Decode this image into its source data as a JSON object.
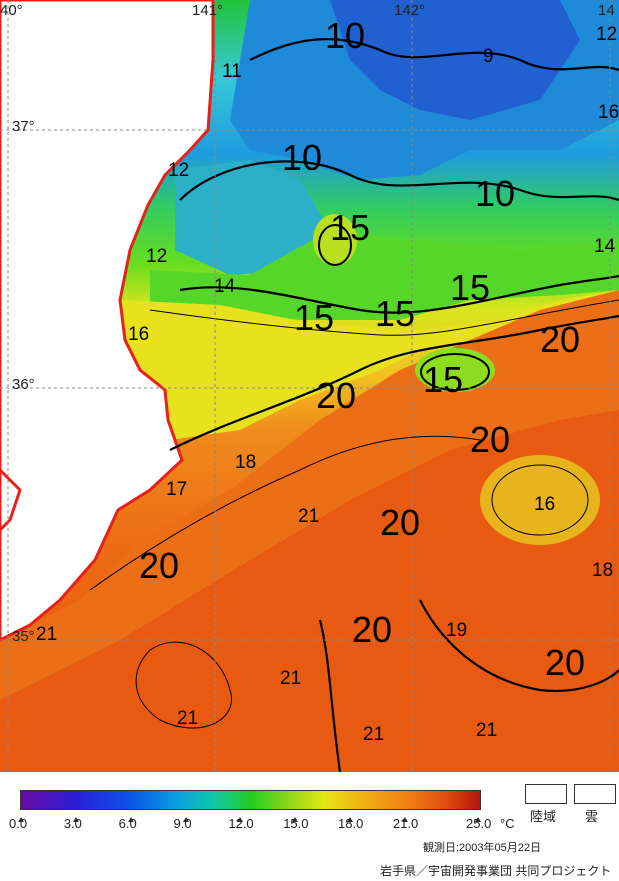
{
  "map": {
    "lon_labels": [
      "40°",
      "141°",
      "142°",
      "14"
    ],
    "lat_labels": [
      "37°",
      "36°",
      "35°"
    ],
    "contour_labels": [
      {
        "text": "10",
        "size": "large"
      },
      {
        "text": "9",
        "size": "small"
      },
      {
        "text": "11",
        "size": "small"
      },
      {
        "text": "12",
        "size": "small"
      },
      {
        "text": "16",
        "size": "small"
      },
      {
        "text": "10",
        "size": "large"
      },
      {
        "text": "10",
        "size": "large"
      },
      {
        "text": "12",
        "size": "small"
      },
      {
        "text": "15",
        "size": "large"
      },
      {
        "text": "12",
        "size": "small"
      },
      {
        "text": "14",
        "size": "small"
      },
      {
        "text": "14",
        "size": "small"
      },
      {
        "text": "15",
        "size": "large"
      },
      {
        "text": "15",
        "size": "large"
      },
      {
        "text": "15",
        "size": "large"
      },
      {
        "text": "16",
        "size": "small"
      },
      {
        "text": "20",
        "size": "large"
      },
      {
        "text": "15",
        "size": "large"
      },
      {
        "text": "20",
        "size": "large"
      },
      {
        "text": "20",
        "size": "large"
      },
      {
        "text": "18",
        "size": "small"
      },
      {
        "text": "17",
        "size": "small"
      },
      {
        "text": "16",
        "size": "small"
      },
      {
        "text": "21",
        "size": "small"
      },
      {
        "text": "20",
        "size": "large"
      },
      {
        "text": "20",
        "size": "large"
      },
      {
        "text": "18",
        "size": "small"
      },
      {
        "text": "21",
        "size": "small"
      },
      {
        "text": "20",
        "size": "large"
      },
      {
        "text": "19",
        "size": "small"
      },
      {
        "text": "20",
        "size": "large"
      },
      {
        "text": "21",
        "size": "small"
      },
      {
        "text": "21",
        "size": "small"
      },
      {
        "text": "21",
        "size": "small"
      },
      {
        "text": "21",
        "size": "small"
      }
    ]
  },
  "legend": {
    "ticks": [
      "0.0",
      "3.0",
      "6.0",
      "9.0",
      "12.0",
      "15.0",
      "18.0",
      "21.0",
      "25.0"
    ],
    "unit": "°C",
    "land_label": "陸域",
    "cloud_label": "雲",
    "observation_date": "観測日:2003年05月22日",
    "credit": "岩手県／宇宙開発事業団 共同プロジェクト"
  }
}
